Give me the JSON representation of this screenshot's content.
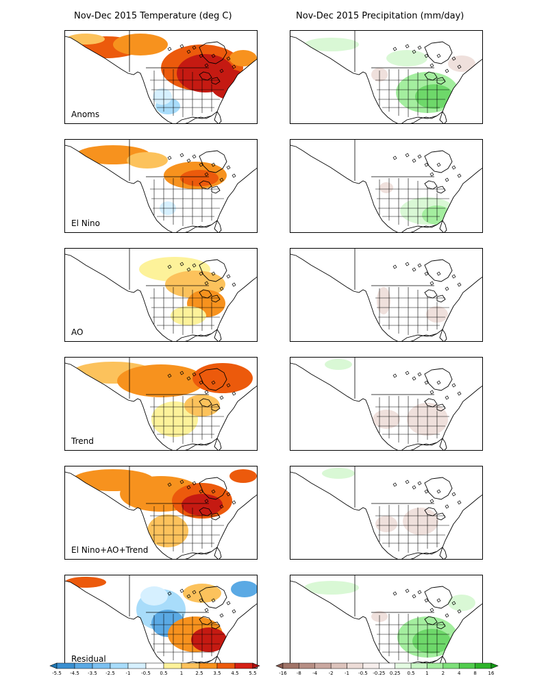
{
  "titles": {
    "temperature": "Nov-Dec 2015 Temperature (deg C)",
    "precipitation": "Nov-Dec 2015 Precipitation (mm/day)"
  },
  "rows": [
    {
      "label": "Anoms"
    },
    {
      "label": "El Nino"
    },
    {
      "label": "AO"
    },
    {
      "label": "Trend"
    },
    {
      "label": "El Nino+AO+Trend"
    },
    {
      "label": "Residual"
    }
  ],
  "temp_colorbar": {
    "ticks": [
      "-5.5",
      "-4.5",
      "-3.5",
      "-2.5",
      "-1",
      "-0.5",
      "0.5",
      "1",
      "2.5",
      "3.5",
      "4.5",
      "5.5"
    ],
    "colors": [
      "#1f78b4",
      "#3a8fd0",
      "#5aa9e4",
      "#7cc0f0",
      "#a8dcfa",
      "#d6f0ff",
      "#ffffff",
      "#fdf29a",
      "#fcc25c",
      "#f7921e",
      "#ec5a0c",
      "#d52016",
      "#b10e0e"
    ]
  },
  "precip_colorbar": {
    "ticks": [
      "-16",
      "-8",
      "-4",
      "-2",
      "-1",
      "-0.5",
      "-0.25",
      "0.25",
      "0.5",
      "1",
      "2",
      "4",
      "8",
      "16"
    ],
    "colors": [
      "#8a5a50",
      "#a07468",
      "#b68e84",
      "#caa8a0",
      "#dcc3bc",
      "#ecdcd7",
      "#f6eeec",
      "#ffffff",
      "#e4fbe2",
      "#c8f5c4",
      "#a4ee9f",
      "#7ee07a",
      "#52cc4e",
      "#2eb32a",
      "#139a14"
    ]
  },
  "colors": {
    "land_outline": "#000000",
    "warm_light": "#fdf29a",
    "warm_med": "#fcc25c",
    "warm": "#f7921e",
    "hot": "#ec5a0c",
    "very_hot": "#c51a12",
    "cool_light": "#d6f0ff",
    "cool": "#a8dcfa",
    "cold": "#5aa9e4",
    "wet_light": "#d9f8d5",
    "wet": "#a4ee9f",
    "wetter": "#6ed86a",
    "dry_light": "#efe0dc",
    "dry": "#dcc3bc"
  }
}
